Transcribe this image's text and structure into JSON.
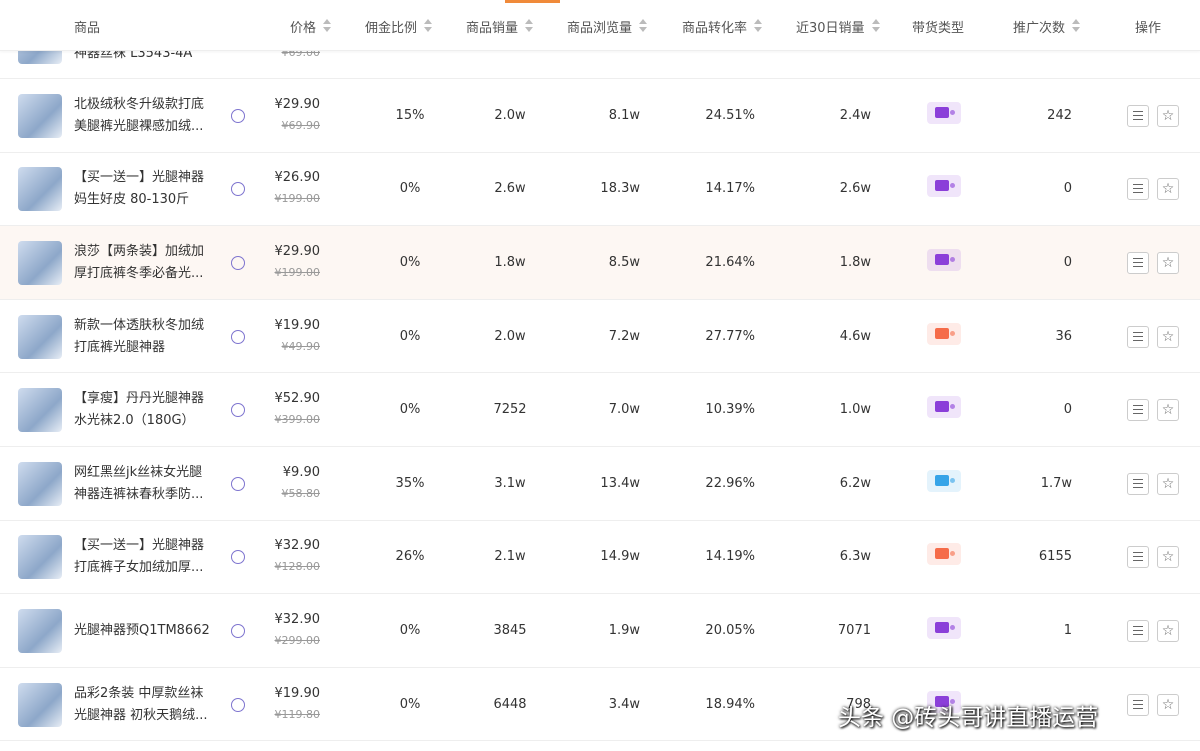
{
  "header": {
    "columns": [
      {
        "label": "商品",
        "sortable": false
      },
      {
        "label": "价格",
        "sortable": true
      },
      {
        "label": "佣金比例",
        "sortable": true
      },
      {
        "label": "商品销量",
        "sortable": true
      },
      {
        "label": "商品浏览量",
        "sortable": true
      },
      {
        "label": "商品转化率",
        "sortable": true
      },
      {
        "label": "近30日销量",
        "sortable": true
      },
      {
        "label": "带货类型",
        "sortable": false
      },
      {
        "label": "推广次数",
        "sortable": true
      },
      {
        "label": "操作",
        "sortable": false
      }
    ]
  },
  "partial_row": {
    "name": "神器丝袜 L3543-4A",
    "original_price": "¥69.00"
  },
  "rows": [
    {
      "name": [
        "北极绒秋冬升级款打底",
        "美腿裤光腿裸感加绒..."
      ],
      "price": "¥29.90",
      "original_price": "¥69.90",
      "commission": "15%",
      "sales": "2.0w",
      "views": "8.1w",
      "conversion": "24.51%",
      "sales_30d": "2.4w",
      "type_color": "#8b3fd9",
      "promotions": "242"
    },
    {
      "name": [
        "【买一送一】光腿神器",
        "妈生好皮 80-130斤"
      ],
      "price": "¥26.90",
      "original_price": "¥199.00",
      "commission": "0%",
      "sales": "2.6w",
      "views": "18.3w",
      "conversion": "14.17%",
      "sales_30d": "2.6w",
      "type_color": "#8b3fd9",
      "promotions": "0"
    },
    {
      "name": [
        "浪莎【两条装】加绒加",
        "厚打底裤冬季必备光..."
      ],
      "price": "¥29.90",
      "original_price": "¥199.00",
      "commission": "0%",
      "sales": "1.8w",
      "views": "8.5w",
      "conversion": "21.64%",
      "sales_30d": "1.8w",
      "type_color": "#8b3fd9",
      "promotions": "0",
      "highlighted": true
    },
    {
      "name": [
        "新款一体透肤秋冬加绒",
        "打底裤光腿神器"
      ],
      "price": "¥19.90",
      "original_price": "¥49.90",
      "commission": "0%",
      "sales": "2.0w",
      "views": "7.2w",
      "conversion": "27.77%",
      "sales_30d": "4.6w",
      "type_color": "#f56c4a",
      "promotions": "36"
    },
    {
      "name": [
        "【享瘦】丹丹光腿神器",
        "水光袜2.0（180G）"
      ],
      "price": "¥52.90",
      "original_price": "¥399.00",
      "commission": "0%",
      "sales": "7252",
      "views": "7.0w",
      "conversion": "10.39%",
      "sales_30d": "1.0w",
      "type_color": "#8b3fd9",
      "promotions": "0"
    },
    {
      "name": [
        "网红黑丝jk丝袜女光腿",
        "神器连裤袜春秋季防..."
      ],
      "price": "¥9.90",
      "original_price": "¥58.80",
      "commission": "35%",
      "sales": "3.1w",
      "views": "13.4w",
      "conversion": "22.96%",
      "sales_30d": "6.2w",
      "type_color": "#36a4e8",
      "promotions": "1.7w"
    },
    {
      "name": [
        "【买一送一】光腿神器",
        "打底裤子女加绒加厚..."
      ],
      "price": "¥32.90",
      "original_price": "¥128.00",
      "commission": "26%",
      "sales": "2.1w",
      "views": "14.9w",
      "conversion": "14.19%",
      "sales_30d": "6.3w",
      "type_color": "#f56c4a",
      "promotions": "6155"
    },
    {
      "name": [
        "光腿神器预Q1TM8662"
      ],
      "price": "¥32.90",
      "original_price": "¥299.00",
      "commission": "0%",
      "sales": "3845",
      "views": "1.9w",
      "conversion": "20.05%",
      "sales_30d": "7071",
      "type_color": "#8b3fd9",
      "promotions": "1"
    },
    {
      "name": [
        "品彩2条装 中厚款丝袜",
        "光腿神器 初秋天鹅绒..."
      ],
      "price": "¥19.90",
      "original_price": "¥119.80",
      "commission": "0%",
      "sales": "6448",
      "views": "3.4w",
      "conversion": "18.94%",
      "sales_30d": "798",
      "type_color": "#8b3fd9",
      "promotions": ""
    }
  ],
  "watermark": "头条 @砖头哥讲直播运营"
}
